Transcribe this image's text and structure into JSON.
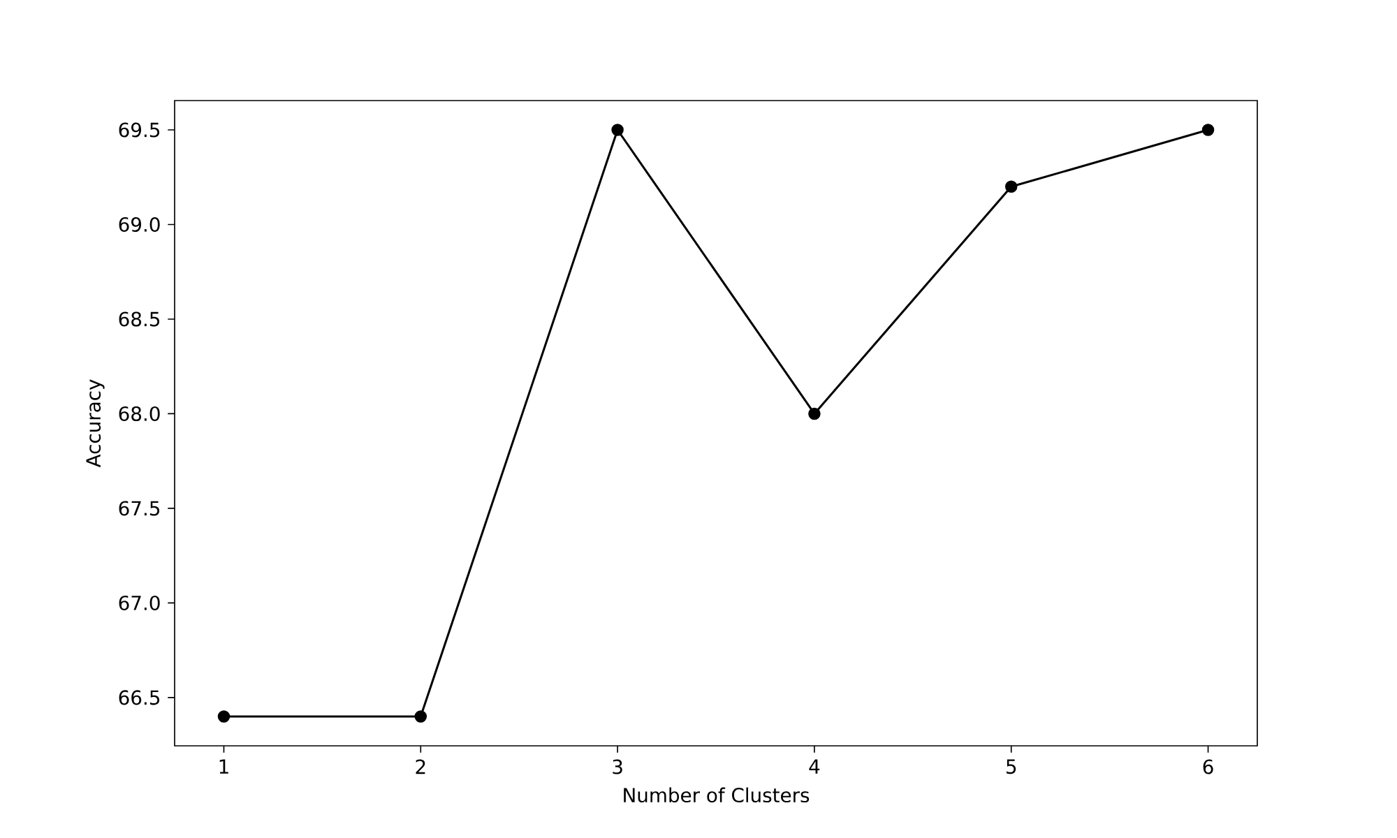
{
  "chart_data": {
    "type": "line",
    "xlabel": "Number of Clusters",
    "ylabel": "Accuracy",
    "x": [
      1,
      2,
      3,
      4,
      5,
      6
    ],
    "series": [
      {
        "color": "#000000",
        "values": [
          66.4,
          66.4,
          69.5,
          68.0,
          69.2,
          69.5
        ]
      }
    ],
    "marker": "circle",
    "line_style": "solid",
    "xlim": [
      0.75,
      6.25
    ],
    "xticks": [
      1,
      2,
      3,
      4,
      5,
      6
    ],
    "ylim": [
      66.245,
      69.655
    ],
    "yticks": [
      {
        "value": 66.5,
        "label": "66.5"
      },
      {
        "value": 67.0,
        "label": "67.0"
      },
      {
        "value": 67.5,
        "label": "67.5"
      },
      {
        "value": 68.0,
        "label": "68.0"
      },
      {
        "value": 68.5,
        "label": "68.5"
      },
      {
        "value": 69.0,
        "label": "69.0"
      },
      {
        "value": 69.5,
        "label": "69.5"
      }
    ]
  }
}
